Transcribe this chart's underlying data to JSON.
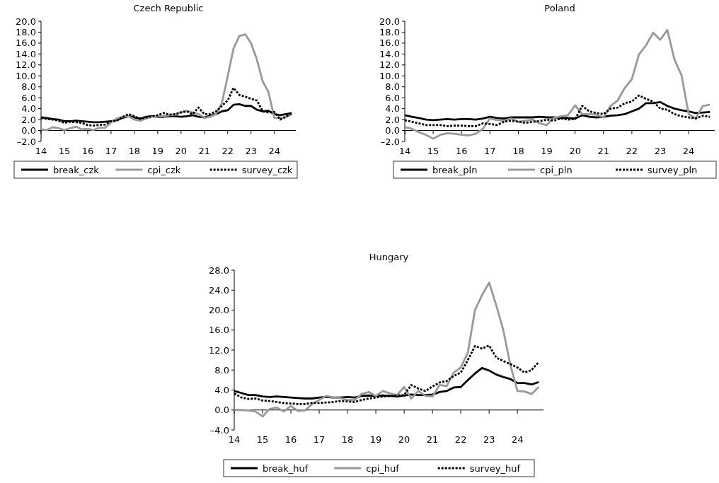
{
  "chart_data": [
    {
      "type": "line",
      "title": "Czech Republic",
      "xlim": [
        14,
        24.92
      ],
      "xticks": [
        14,
        15,
        16,
        17,
        18,
        19,
        20,
        21,
        22,
        23,
        24
      ],
      "ylim": [
        -2,
        20
      ],
      "yticks": [
        {
          "value": -2,
          "label": "–2.0"
        },
        {
          "value": 0,
          "label": "0.0"
        },
        {
          "value": 2,
          "label": "2.0"
        },
        {
          "value": 4,
          "label": "4.0"
        },
        {
          "value": 6,
          "label": "6.0"
        },
        {
          "value": 8,
          "label": "8.0"
        },
        {
          "value": 10,
          "label": "10.0"
        },
        {
          "value": 12,
          "label": "12.0"
        },
        {
          "value": 14,
          "label": "14.0"
        },
        {
          "value": 16,
          "label": "16.0"
        },
        {
          "value": 18,
          "label": "18.0"
        },
        {
          "value": 20,
          "label": "20.0"
        }
      ],
      "grid": false,
      "legend": "bottom",
      "x": [
        14,
        14.25,
        14.5,
        14.75,
        15,
        15.25,
        15.5,
        15.75,
        16,
        16.25,
        16.5,
        16.75,
        17,
        17.25,
        17.5,
        17.75,
        18,
        18.25,
        18.5,
        18.75,
        19,
        19.25,
        19.5,
        19.75,
        20,
        20.25,
        20.5,
        20.75,
        21,
        21.25,
        21.5,
        21.75,
        22,
        22.25,
        22.5,
        22.75,
        23,
        23.25,
        23.5,
        23.75,
        24,
        24.25,
        24.5,
        24.75
      ],
      "series": [
        {
          "name": "break_czk",
          "color": "#000000",
          "line_style": "solid",
          "values": [
            2.4,
            2.3,
            2.1,
            2.0,
            1.7,
            1.7,
            1.8,
            1.7,
            1.6,
            1.5,
            1.5,
            1.6,
            1.7,
            1.9,
            2.3,
            2.6,
            2.4,
            2.2,
            2.5,
            2.6,
            2.5,
            2.5,
            2.6,
            2.6,
            2.5,
            2.6,
            2.8,
            2.5,
            2.4,
            2.7,
            3.0,
            3.5,
            3.7,
            4.7,
            4.8,
            4.5,
            4.5,
            3.8,
            3.5,
            3.6,
            3.0,
            2.8,
            3.0,
            3.2
          ]
        },
        {
          "name": "cpi_czk",
          "color": "#999999",
          "line_style": "solid",
          "values": [
            0.2,
            0.1,
            0.6,
            0.4,
            0.1,
            0.4,
            0.7,
            0.2,
            0.3,
            0.1,
            0.5,
            0.5,
            1.5,
            2.2,
            2.5,
            2.6,
            2.0,
            1.8,
            2.2,
            2.5,
            2.6,
            2.6,
            2.8,
            2.9,
            3.4,
            3.6,
            3.3,
            3.0,
            2.3,
            2.5,
            3.0,
            5.0,
            9.9,
            15.0,
            17.3,
            17.6,
            16.0,
            13.0,
            9.0,
            7.0,
            2.3,
            2.3,
            2.5,
            3.0
          ]
        },
        {
          "name": "survey_czk",
          "color": "#000000",
          "line_style": "dotted",
          "values": [
            2.3,
            2.1,
            2.0,
            1.8,
            1.4,
            1.6,
            1.5,
            1.4,
            1.0,
            0.9,
            1.0,
            1.1,
            1.7,
            1.8,
            2.5,
            3.0,
            2.6,
            2.1,
            2.4,
            2.6,
            2.8,
            3.2,
            2.9,
            3.0,
            3.3,
            3.5,
            3.0,
            4.2,
            3.0,
            3.0,
            3.5,
            4.5,
            5.5,
            7.8,
            6.5,
            6.2,
            5.8,
            5.5,
            3.5,
            3.3,
            3.4,
            2.0,
            2.5,
            3.2
          ]
        }
      ]
    },
    {
      "type": "line",
      "title": "Poland",
      "xlim": [
        14,
        24.92
      ],
      "xticks": [
        14,
        15,
        16,
        17,
        18,
        19,
        20,
        21,
        22,
        23,
        24
      ],
      "ylim": [
        -2,
        20
      ],
      "yticks": [
        {
          "value": -2,
          "label": "–2.0"
        },
        {
          "value": 0,
          "label": "0.0"
        },
        {
          "value": 2,
          "label": "2.0"
        },
        {
          "value": 4,
          "label": "4.0"
        },
        {
          "value": 6,
          "label": "6.0"
        },
        {
          "value": 8,
          "label": "8.0"
        },
        {
          "value": 10,
          "label": "10.0"
        },
        {
          "value": 12,
          "label": "12.0"
        },
        {
          "value": 14,
          "label": "14.0"
        },
        {
          "value": 16,
          "label": "16.0"
        },
        {
          "value": 18,
          "label": "18.0"
        },
        {
          "value": 20,
          "label": "20.0"
        }
      ],
      "grid": false,
      "legend": "bottom",
      "x": [
        14,
        14.25,
        14.5,
        14.75,
        15,
        15.25,
        15.5,
        15.75,
        16,
        16.25,
        16.5,
        16.75,
        17,
        17.25,
        17.5,
        17.75,
        18,
        18.25,
        18.5,
        18.75,
        19,
        19.25,
        19.5,
        19.75,
        20,
        20.25,
        20.5,
        20.75,
        21,
        21.25,
        21.5,
        21.75,
        22,
        22.25,
        22.5,
        22.75,
        23,
        23.25,
        23.5,
        23.75,
        24,
        24.25,
        24.5,
        24.75
      ],
      "series": [
        {
          "name": "break_pln",
          "color": "#000000",
          "line_style": "solid",
          "values": [
            2.8,
            2.5,
            2.3,
            2.0,
            1.9,
            2.0,
            2.1,
            2.0,
            2.1,
            2.1,
            2.0,
            2.2,
            2.5,
            2.3,
            2.2,
            2.4,
            2.4,
            2.4,
            2.4,
            2.5,
            2.4,
            2.4,
            2.3,
            2.3,
            2.2,
            2.8,
            2.5,
            2.4,
            2.5,
            2.7,
            2.8,
            3.0,
            3.5,
            4.0,
            5.0,
            5.0,
            5.2,
            4.5,
            4.0,
            3.7,
            3.5,
            3.2,
            3.3,
            3.4
          ]
        },
        {
          "name": "cpi_pln",
          "color": "#999999",
          "line_style": "solid",
          "values": [
            0.6,
            0.3,
            -0.3,
            -0.8,
            -1.5,
            -0.8,
            -0.5,
            -0.6,
            -0.8,
            -0.9,
            -0.6,
            0.3,
            2.2,
            1.9,
            1.8,
            2.2,
            1.6,
            1.8,
            2.0,
            1.3,
            1.0,
            2.3,
            2.6,
            2.8,
            4.6,
            3.0,
            3.0,
            2.9,
            2.4,
            4.5,
            5.5,
            7.8,
            9.4,
            13.9,
            15.6,
            17.9,
            16.6,
            18.4,
            13.0,
            10.1,
            3.0,
            2.2,
            4.5,
            4.7
          ]
        },
        {
          "name": "survey_pln",
          "color": "#000000",
          "line_style": "dotted",
          "values": [
            1.9,
            1.6,
            1.3,
            1.0,
            1.0,
            1.0,
            0.8,
            0.9,
            0.9,
            0.8,
            0.8,
            1.3,
            1.2,
            1.0,
            1.6,
            1.8,
            1.6,
            1.4,
            1.6,
            1.7,
            2.0,
            1.8,
            2.2,
            2.0,
            2.1,
            4.5,
            3.5,
            3.2,
            3.0,
            4.0,
            4.2,
            5.0,
            5.3,
            6.4,
            5.8,
            5.3,
            4.0,
            3.8,
            3.0,
            2.6,
            2.4,
            2.2,
            2.7,
            2.5
          ]
        }
      ]
    },
    {
      "type": "line",
      "title": "Hungary",
      "xlim": [
        14,
        24.92
      ],
      "xticks": [
        14,
        15,
        16,
        17,
        18,
        19,
        20,
        21,
        22,
        23,
        24
      ],
      "ylim": [
        -4,
        28
      ],
      "yticks": [
        {
          "value": -4,
          "label": "–4.0"
        },
        {
          "value": 0,
          "label": "0.0"
        },
        {
          "value": 4,
          "label": "4.0"
        },
        {
          "value": 8,
          "label": "8.0"
        },
        {
          "value": 12,
          "label": "12.0"
        },
        {
          "value": 16,
          "label": "16.0"
        },
        {
          "value": 20,
          "label": "20.0"
        },
        {
          "value": 24,
          "label": "24.0"
        },
        {
          "value": 28,
          "label": "28.0"
        }
      ],
      "legend": "bottom",
      "x": [
        14,
        14.25,
        14.5,
        14.75,
        15,
        15.25,
        15.5,
        15.75,
        16,
        16.25,
        16.5,
        16.75,
        17,
        17.25,
        17.5,
        17.75,
        18,
        18.25,
        18.5,
        18.75,
        19,
        19.25,
        19.5,
        19.75,
        20,
        20.25,
        20.5,
        20.75,
        21,
        21.25,
        21.5,
        21.75,
        22,
        22.25,
        22.5,
        22.75,
        23,
        23.25,
        23.5,
        23.75,
        24,
        24.25,
        24.5,
        24.75
      ],
      "series": [
        {
          "name": "break_huf",
          "color": "#000000",
          "line_style": "solid",
          "values": [
            3.8,
            3.4,
            3.0,
            3.0,
            2.7,
            2.6,
            2.7,
            2.6,
            2.5,
            2.4,
            2.3,
            2.3,
            2.5,
            2.6,
            2.5,
            2.5,
            2.6,
            2.5,
            2.8,
            2.9,
            2.8,
            2.9,
            2.8,
            2.7,
            2.9,
            3.1,
            3.0,
            3.0,
            3.1,
            3.6,
            3.8,
            4.5,
            4.6,
            6.0,
            7.3,
            8.4,
            7.9,
            7.1,
            6.6,
            6.2,
            5.4,
            5.4,
            5.1,
            5.6
          ]
        },
        {
          "name": "cpi_huf",
          "color": "#999999",
          "line_style": "solid",
          "values": [
            0.0,
            0.0,
            -0.1,
            -0.3,
            -1.3,
            0.2,
            0.5,
            -0.3,
            0.8,
            -0.2,
            -0.1,
            1.2,
            2.0,
            2.8,
            2.5,
            2.4,
            2.0,
            2.0,
            3.2,
            3.6,
            2.8,
            3.8,
            3.3,
            3.0,
            4.6,
            2.3,
            3.8,
            2.8,
            2.7,
            5.0,
            4.8,
            7.5,
            8.5,
            11.5,
            20.0,
            23.0,
            25.5,
            21.0,
            16.0,
            9.0,
            3.8,
            3.7,
            3.2,
            4.6
          ]
        },
        {
          "name": "survey_huf",
          "color": "#000000",
          "line_style": "dotted",
          "values": [
            3.3,
            2.5,
            2.2,
            2.3,
            1.9,
            1.8,
            1.6,
            1.4,
            1.3,
            1.2,
            1.2,
            1.4,
            1.4,
            1.5,
            1.6,
            1.8,
            1.7,
            1.6,
            2.0,
            2.3,
            2.5,
            2.7,
            2.8,
            2.9,
            3.0,
            5.0,
            4.3,
            3.8,
            4.7,
            5.5,
            5.8,
            6.8,
            7.5,
            10.0,
            12.8,
            12.3,
            12.9,
            10.5,
            9.8,
            9.2,
            8.5,
            7.5,
            8.0,
            9.6
          ]
        }
      ]
    }
  ]
}
